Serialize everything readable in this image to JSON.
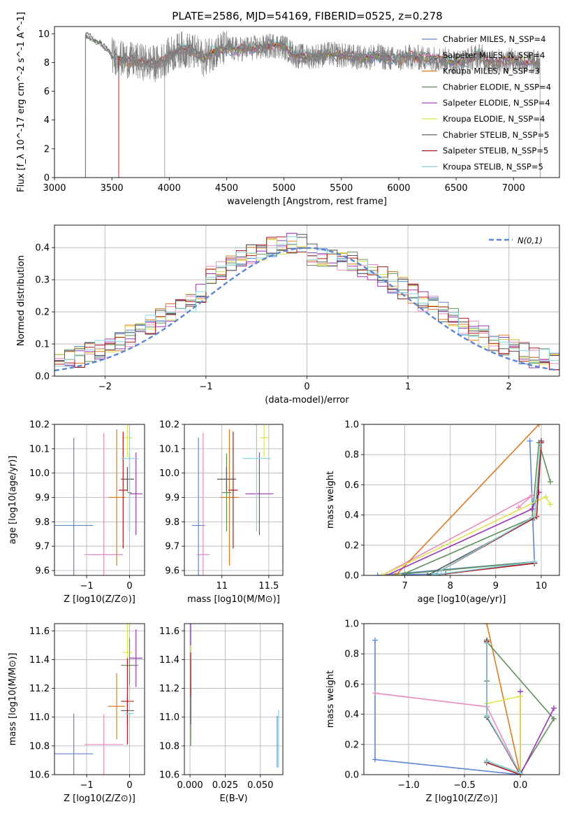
{
  "title": "PLATE=2586, MJD=54169, FIBERID=0525, z=0.278",
  "models": [
    {
      "name": "Chabrier MILES, N_SSP=4",
      "color": "#5b86d6"
    },
    {
      "name": "Salpeter MILES, N_SSP=4",
      "color": "#e98bbf"
    },
    {
      "name": "Kroupa MILES, N_SSP=3",
      "color": "#e07a1f"
    },
    {
      "name": "Chabrier ELODIE, N_SSP=4",
      "color": "#5f8f5a"
    },
    {
      "name": "Salpeter ELODIE, N_SSP=4",
      "color": "#9a35b4"
    },
    {
      "name": "Kroupa ELODIE, N_SSP=4",
      "color": "#dde54b"
    },
    {
      "name": "Chabrier STELIB, N_SSP=5",
      "color": "#555555"
    },
    {
      "name": "Salpeter STELIB, N_SSP=5",
      "color": "#b01818"
    },
    {
      "name": "Kroupa STELIB, N_SSP=5",
      "color": "#86d4e0"
    }
  ],
  "chart_data": [
    {
      "id": "spectrum",
      "type": "line",
      "xlabel": "wavelength [Angstrom, rest frame]",
      "ylabel": "Flux [f_λ 10^-17 erg cm^-2 s^-1 A^-1]",
      "xlim": [
        3000,
        7400
      ],
      "ylim": [
        0,
        10.5
      ],
      "xticks": [
        3000,
        3500,
        4000,
        4500,
        5000,
        5500,
        6000,
        6500,
        7000
      ],
      "yticks": [
        0,
        2,
        4,
        6,
        8,
        10
      ],
      "grid": false,
      "legend": "upper-right",
      "observed_color": "#808080",
      "observed_range": [
        3270,
        7230
      ],
      "continuum": {
        "x": [
          3270,
          3300,
          3400,
          3500,
          3600,
          3700,
          3800,
          3900,
          4000,
          4100,
          4200,
          4300,
          4400,
          4500,
          4600,
          4700,
          4800,
          4900,
          5000,
          5100,
          5200,
          5300,
          5400,
          5500,
          5600,
          5700,
          5800,
          5900,
          6000,
          6100,
          6200,
          6300,
          6400,
          6500,
          6600,
          6700,
          6800,
          6900,
          7000,
          7100,
          7230
        ],
        "y": [
          9.9,
          9.7,
          9.3,
          8.5,
          8.2,
          8.1,
          8.0,
          7.9,
          8.5,
          8.9,
          8.8,
          8.3,
          8.8,
          9.0,
          8.9,
          9.0,
          9.0,
          9.2,
          9.1,
          8.5,
          8.4,
          8.5,
          8.6,
          8.5,
          8.4,
          8.3,
          8.5,
          8.3,
          8.2,
          8.4,
          8.3,
          8.3,
          8.2,
          8.0,
          8.2,
          8.5,
          8.0,
          8.1,
          8.2,
          8.0,
          8.0
        ]
      },
      "model_start": [
        3560,
        3560,
        3560,
        3270,
        3960,
        3960,
        3270,
        3560,
        3960
      ],
      "model_end": [
        7230,
        7230,
        7230,
        6750,
        7230,
        7230,
        6750,
        7230,
        6750
      ]
    },
    {
      "id": "residuals",
      "type": "line",
      "xlabel": "(data-model)/error",
      "ylabel": "Normed distribution",
      "xlim": [
        -2.5,
        2.5
      ],
      "ylim": [
        0,
        0.47
      ],
      "xticks": [
        -2,
        -1,
        0,
        1,
        2
      ],
      "yticks": [
        0.0,
        0.1,
        0.2,
        0.3,
        0.4
      ],
      "grid": true,
      "legend": "upper-right",
      "normal_label": "N(0,1)",
      "normal_color": "#5b86d6",
      "bin_width": 0.1
    },
    {
      "id": "age-vs-Z",
      "type": "scatter",
      "xlabel": "Z [log10(Z/Z⊙)]",
      "ylabel": "age [log10(age/yr)]",
      "xlim": [
        -1.75,
        0.35
      ],
      "ylim": [
        9.58,
        10.2
      ],
      "xticks": [
        -1,
        0
      ],
      "yticks": [
        9.6,
        9.7,
        9.8,
        9.9,
        10.0,
        10.1,
        10.2
      ],
      "grid": true,
      "points": [
        {
          "x": -1.3,
          "y": 9.785,
          "xerr": 0.45,
          "yerr": 0.36
        },
        {
          "x": -0.6,
          "y": 9.665,
          "xerr": 0.45,
          "yerr": 0.5
        },
        {
          "x": -0.3,
          "y": 9.9,
          "xerr": 0.2,
          "yerr": 0.28
        },
        {
          "x": 0.0,
          "y": 9.92,
          "xerr": 0.05,
          "yerr": 0.16
        },
        {
          "x": 0.15,
          "y": 9.915,
          "xerr": 0.15,
          "yerr": 0.17
        },
        {
          "x": -0.05,
          "y": 10.145,
          "xerr": 0.12,
          "yerr": 0.08
        },
        {
          "x": -0.05,
          "y": 9.975,
          "xerr": 0.15,
          "yerr": 0.05
        },
        {
          "x": -0.15,
          "y": 9.93,
          "xerr": 0.1,
          "yerr": 0.24
        },
        {
          "x": 0.0,
          "y": 10.06,
          "xerr": 0.2,
          "yerr": 0.3
        }
      ]
    },
    {
      "id": "age-vs-mass",
      "type": "scatter",
      "xlabel": "mass [log10(M/M⊙)]",
      "ylabel": "",
      "xlim": [
        10.6,
        11.65
      ],
      "ylim": [
        9.58,
        10.2
      ],
      "xticks": [
        11.0,
        11.5
      ],
      "yticks": [
        9.6,
        9.7,
        9.8,
        9.9,
        10.0,
        10.1,
        10.2
      ],
      "grid": true,
      "points": [
        {
          "x": 10.75,
          "y": 9.785,
          "xerr": 0.07,
          "yerr": 0.36
        },
        {
          "x": 10.8,
          "y": 9.665,
          "xerr": 0.07,
          "yerr": 0.5
        },
        {
          "x": 11.08,
          "y": 9.9,
          "xerr": 0.1,
          "yerr": 0.28
        },
        {
          "x": 11.05,
          "y": 9.92,
          "xerr": 0.05,
          "yerr": 0.16
        },
        {
          "x": 11.4,
          "y": 9.915,
          "xerr": 0.15,
          "yerr": 0.17
        },
        {
          "x": 11.45,
          "y": 10.145,
          "xerr": 0.05,
          "yerr": 0.08
        },
        {
          "x": 11.05,
          "y": 9.975,
          "xerr": 0.1,
          "yerr": 0.05
        },
        {
          "x": 11.12,
          "y": 9.93,
          "xerr": 0.05,
          "yerr": 0.24
        },
        {
          "x": 11.37,
          "y": 10.06,
          "xerr": 0.15,
          "yerr": 0.3
        }
      ]
    },
    {
      "id": "weight-vs-age",
      "type": "line",
      "xlabel": "age [log10(age/yr)]",
      "ylabel": "mass weight",
      "xlim": [
        6.1,
        10.4
      ],
      "ylim": [
        0,
        1.0
      ],
      "xticks": [
        7,
        8,
        9,
        10
      ],
      "yticks": [
        0.0,
        0.2,
        0.4,
        0.6,
        0.8,
        1.0
      ],
      "grid": true,
      "series": [
        {
          "x": [
            9.75,
            9.85,
            6.4,
            7.8,
            9.85
          ],
          "y": [
            0.89,
            0.09,
            0.0,
            0.01,
            0.08
          ]
        },
        {
          "x": [
            9.5,
            9.8,
            6.5
          ],
          "y": [
            0.45,
            0.53,
            0.0
          ]
        },
        {
          "x": [
            9.95,
            6.8,
            6.9
          ],
          "y": [
            1.0,
            0.0,
            0.0
          ]
        },
        {
          "x": [
            10.2,
            9.95,
            9.8,
            6.9,
            7.0,
            9.85
          ],
          "y": [
            0.62,
            0.88,
            0.38,
            0.0,
            0.01,
            0.09
          ]
        },
        {
          "x": [
            9.95,
            9.8,
            6.6
          ],
          "y": [
            0.55,
            0.44,
            0.0
          ]
        },
        {
          "x": [
            10.2,
            10.1,
            6.5,
            6.9
          ],
          "y": [
            0.47,
            0.52,
            0.0,
            0.0
          ]
        },
        {
          "x": [
            10.0,
            9.85,
            7.5,
            7.9,
            9.85
          ],
          "y": [
            0.89,
            0.38,
            0.0,
            0.01,
            0.09
          ]
        },
        {
          "x": [
            10.0,
            9.9,
            7.6,
            9.85
          ],
          "y": [
            0.88,
            0.39,
            0.0,
            0.08
          ]
        },
        {
          "x": [
            9.98,
            9.85,
            7.6,
            7.8,
            9.85
          ],
          "y": [
            0.87,
            0.39,
            0.0,
            0.01,
            0.09
          ]
        }
      ]
    },
    {
      "id": "mass-vs-Z",
      "type": "scatter",
      "xlabel": "Z [log10(Z/Z⊙)]",
      "ylabel": "mass [log10(M/M⊙)]",
      "xlim": [
        -1.75,
        0.35
      ],
      "ylim": [
        10.6,
        11.65
      ],
      "xticks": [
        -1,
        0
      ],
      "yticks": [
        10.6,
        10.8,
        11.0,
        11.2,
        11.4,
        11.6
      ],
      "grid": true,
      "points": [
        {
          "x": -1.3,
          "y": 10.745,
          "xerr": 0.45,
          "yerr": 0.28
        },
        {
          "x": -0.6,
          "y": 10.81,
          "xerr": 0.45,
          "yerr": 0.21
        },
        {
          "x": -0.3,
          "y": 11.075,
          "xerr": 0.2,
          "yerr": 0.23
        },
        {
          "x": 0.0,
          "y": 11.36,
          "xerr": 0.2,
          "yerr": 0.19
        },
        {
          "x": 0.15,
          "y": 11.41,
          "xerr": 0.15,
          "yerr": 0.2
        },
        {
          "x": -0.05,
          "y": 11.45,
          "xerr": 0.12,
          "yerr": 0.2
        },
        {
          "x": -0.05,
          "y": 11.045,
          "xerr": 0.15,
          "yerr": 0.1
        },
        {
          "x": -0.05,
          "y": 11.11,
          "xerr": 0.15,
          "yerr": 0.3
        },
        {
          "x": 0.0,
          "y": 11.025,
          "xerr": 0.1,
          "yerr": 0.2
        }
      ]
    },
    {
      "id": "mass-vs-EBV",
      "type": "scatter",
      "xlabel": "E(B-V)",
      "ylabel": "",
      "xlim": [
        -0.004,
        0.066
      ],
      "ylim": [
        10.6,
        11.65
      ],
      "xticks": [
        0.0,
        0.025,
        0.05
      ],
      "yticks": [
        10.6,
        10.8,
        11.0,
        11.2,
        11.4,
        11.6
      ],
      "xticklabels": [
        "0.000",
        "0.025",
        "0.050"
      ],
      "grid": true,
      "points": [
        {
          "x": 0.062,
          "y": 10.83,
          "xerr": 0,
          "yerr": 0.18
        },
        {
          "x": 0.0005,
          "y": 11.2,
          "xerr": 0,
          "yerr": 0.2
        },
        {
          "x": 0.0005,
          "y": 10.95,
          "xerr": 0,
          "yerr": 0.1
        },
        {
          "x": 0.0005,
          "y": 11.0,
          "xerr": 0,
          "yerr": 0.2
        },
        {
          "x": 0.0005,
          "y": 11.55,
          "xerr": 0,
          "yerr": 0.1
        },
        {
          "x": 0.0005,
          "y": 11.45,
          "xerr": 0,
          "yerr": 0.05
        },
        {
          "x": 0.0005,
          "y": 11.1,
          "xerr": 0,
          "yerr": 0.15
        },
        {
          "x": 0.0005,
          "y": 11.3,
          "xerr": 0,
          "yerr": 0.15
        },
        {
          "x": 0.063,
          "y": 10.85,
          "xerr": 0,
          "yerr": 0.2
        }
      ]
    },
    {
      "id": "weight-vs-Z",
      "type": "line",
      "xlabel": "Z [log10(Z/Z⊙)]",
      "ylabel": "mass weight",
      "xlim": [
        -1.4,
        0.35
      ],
      "ylim": [
        0,
        1.0
      ],
      "xticks": [
        -1.0,
        -0.5,
        0.0
      ],
      "yticks": [
        0.0,
        0.2,
        0.4,
        0.6,
        0.8,
        1.0
      ],
      "xticklabels": [
        "−1.0",
        "−0.5",
        "0.0"
      ],
      "grid": true,
      "series": [
        {
          "x": [
            -1.3,
            -1.3,
            0.0,
            0.0
          ],
          "y": [
            0.89,
            0.1,
            0.0,
            0.01
          ]
        },
        {
          "x": [
            -1.3,
            -0.3,
            0.0
          ],
          "y": [
            0.54,
            0.45,
            0.0
          ]
        },
        {
          "x": [
            -0.3,
            0.0
          ],
          "y": [
            1.0,
            0.0
          ]
        },
        {
          "x": [
            -0.3,
            -0.3,
            0.3,
            0.0,
            -0.3
          ],
          "y": [
            0.62,
            0.88,
            0.37,
            0.01,
            0.09
          ]
        },
        {
          "x": [
            0.3,
            0.0,
            0.0
          ],
          "y": [
            0.44,
            0.0,
            0.55
          ]
        },
        {
          "x": [
            -0.3,
            0.0,
            0.0
          ],
          "y": [
            0.47,
            0.52,
            0.0
          ]
        },
        {
          "x": [
            -0.3,
            -0.3,
            0.0,
            -0.3
          ],
          "y": [
            0.89,
            0.38,
            0.01,
            0.09
          ]
        },
        {
          "x": [
            -0.3,
            -0.3,
            0.0,
            -0.3
          ],
          "y": [
            0.88,
            0.39,
            0.0,
            0.08
          ]
        },
        {
          "x": [
            -0.3,
            -0.3,
            0.0,
            -0.3
          ],
          "y": [
            0.87,
            0.39,
            0.01,
            0.09
          ]
        }
      ]
    }
  ]
}
